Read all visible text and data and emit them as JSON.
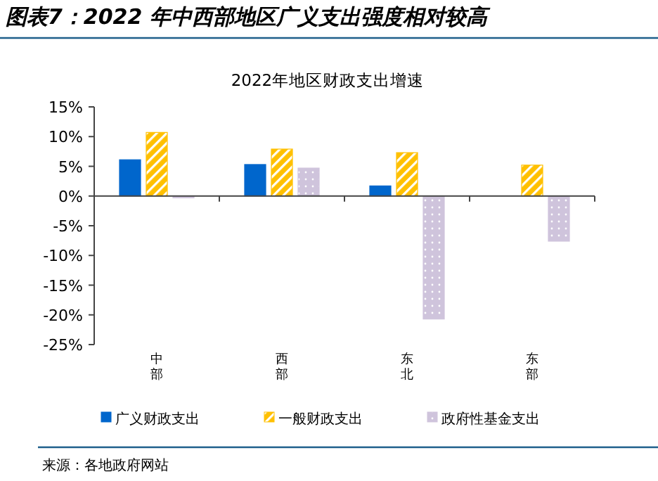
{
  "chart_data": {
    "type": "bar",
    "title": "图表7：2022 年中西部地区广义支出强度相对较高",
    "subtitle": "2022年地区财政支出增速",
    "categories": [
      "中部",
      "西部",
      "东北",
      "东部"
    ],
    "series": [
      {
        "name": "广义财政支出",
        "color": "#0066cc",
        "values": [
          6.1,
          5.3,
          1.7,
          null
        ]
      },
      {
        "name": "一般财政支出",
        "color": "#ffc000",
        "values": [
          10.7,
          7.9,
          7.3,
          5.2
        ]
      },
      {
        "name": "政府性基金支出",
        "color": "#cfc4dc",
        "values": [
          -0.3,
          4.7,
          -20.7,
          -7.6
        ]
      }
    ],
    "ylim": [
      -25,
      15
    ],
    "yticks": [
      {
        "value": -25,
        "label": "-25%"
      },
      {
        "value": -20,
        "label": "-20%"
      },
      {
        "value": -15,
        "label": "-15%"
      },
      {
        "value": -10,
        "label": "-10%"
      },
      {
        "value": -5,
        "label": "-5%"
      },
      {
        "value": 0,
        "label": "0%"
      },
      {
        "value": 5,
        "label": "5%"
      },
      {
        "value": 10,
        "label": "10%"
      },
      {
        "value": 15,
        "label": "15%"
      }
    ],
    "legend": "bottom",
    "annotations": [
      "来源：各地政府网站"
    ]
  }
}
